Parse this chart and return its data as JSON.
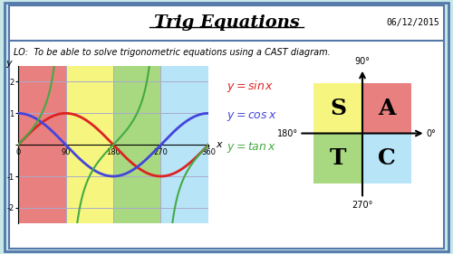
{
  "title": "Trig Equations",
  "date": "06/12/2015",
  "lo_text": "LO:  To be able to solve trigonometric equations using a CAST diagram.",
  "bg_outer": "#c8e8e8",
  "bg_inner": "#ffffff",
  "graph_bg_colors": [
    "#e88080",
    "#f5f580",
    "#a8d880",
    "#b8e4f8"
  ],
  "cast_colors": {
    "S": "#f5f580",
    "A": "#e88080",
    "T": "#a8d880",
    "C": "#b8e4f8"
  },
  "sin_color": "#dd2222",
  "cos_color": "#4444dd",
  "tan_color": "#44aa44",
  "grid_color": "#aaaacc",
  "title_color": "#000000",
  "lo_color": "#000000",
  "border_color": "#5577aa"
}
